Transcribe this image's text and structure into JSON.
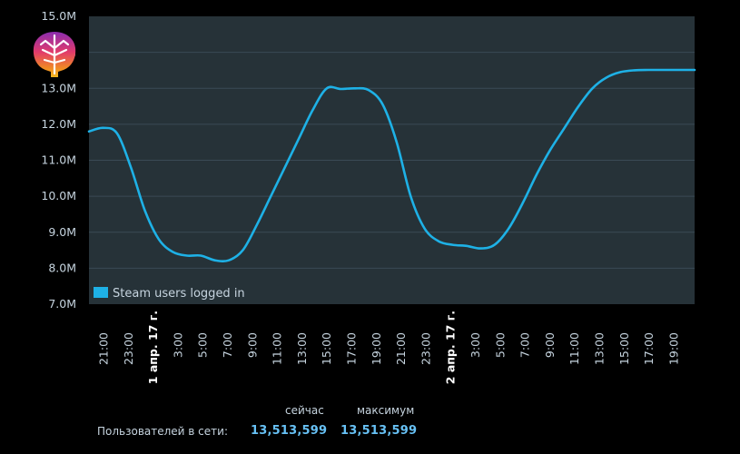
{
  "chart_data": {
    "type": "line",
    "title": "",
    "xlabel": "",
    "ylabel": "",
    "ylim": [
      7.0,
      15.0
    ],
    "y_ticks": [
      "7.0M",
      "8.0M",
      "9.0M",
      "10.0M",
      "11.0M",
      "12.0M",
      "13.0M",
      "14.0M",
      "15.0M"
    ],
    "x_ticks": [
      "21:00",
      "23:00",
      "1 апр. 17 г.",
      "3:00",
      "5:00",
      "7:00",
      "9:00",
      "11:00",
      "13:00",
      "15:00",
      "17:00",
      "19:00",
      "21:00",
      "23:00",
      "2 апр. 17 г.",
      "3:00",
      "5:00",
      "7:00",
      "9:00",
      "11:00",
      "13:00",
      "15:00",
      "17:00",
      "19:00"
    ],
    "date_ticks": [
      "1 апр. 17 г.",
      "2 апр. 17 г."
    ],
    "x_range_hours": [
      20,
      63.3
    ],
    "grid": true,
    "legend_position": "bottom-left",
    "series": [
      {
        "name": "Steam users logged in",
        "color": "#1eb1e6",
        "x_hours": [
          20,
          21,
          22,
          23,
          24,
          25,
          26,
          27,
          28,
          29,
          30,
          31,
          32,
          33,
          34,
          35,
          36,
          37,
          38,
          39,
          40,
          41,
          42,
          43,
          44,
          45,
          46,
          47,
          48,
          49,
          50,
          51,
          52,
          53,
          54,
          55,
          56,
          57,
          58,
          59,
          60,
          61,
          62,
          63,
          63.3
        ],
        "values": [
          11.8,
          11.9,
          11.75,
          10.8,
          9.6,
          8.8,
          8.45,
          8.35,
          8.35,
          8.22,
          8.22,
          8.5,
          9.2,
          10.0,
          10.8,
          11.6,
          12.4,
          13.0,
          12.98,
          13.0,
          12.95,
          12.55,
          11.5,
          10.0,
          9.1,
          8.75,
          8.65,
          8.62,
          8.55,
          8.65,
          9.1,
          9.8,
          10.6,
          11.3,
          11.9,
          12.5,
          13.0,
          13.3,
          13.45,
          13.5,
          13.51,
          13.51,
          13.51,
          13.51,
          13.51
        ]
      }
    ]
  },
  "legend": {
    "label": "Steam users logged in"
  },
  "stats": {
    "now_header": "сейчас",
    "max_header": "максимум",
    "online_label": "Пользователей в сети:",
    "now_value": "13,513,599",
    "max_value": "13,513,599"
  },
  "logo": {
    "icon": "brain-tree-icon"
  }
}
